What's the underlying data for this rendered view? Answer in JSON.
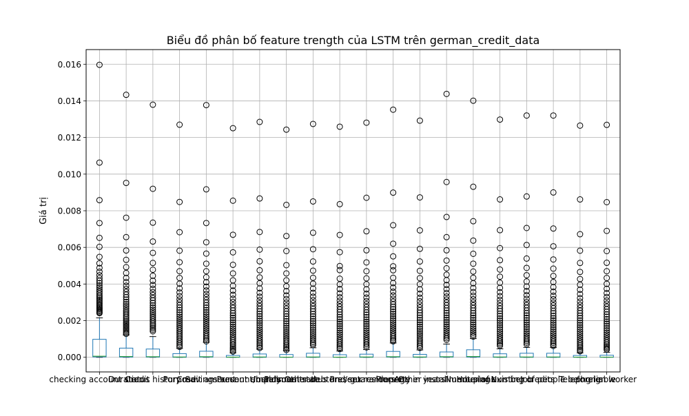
{
  "chart_data": {
    "type": "box",
    "title": "Biểu đồ phân bố feature trength của LSTM trên german_credit_data",
    "xlabel": "",
    "ylabel": "Giá trị",
    "ylim": [
      -0.0008,
      0.0168
    ],
    "yticks": [
      0.0,
      0.002,
      0.004,
      0.006,
      0.008,
      0.01,
      0.012,
      0.014,
      0.016
    ],
    "ytick_labels": [
      "0.000",
      "0.002",
      "0.004",
      "0.006",
      "0.008",
      "0.010",
      "0.012",
      "0.014",
      "0.016"
    ],
    "grid": true,
    "colors": {
      "box": "#1f77b4",
      "median": "#2ca02c",
      "whisker": "#000000",
      "grid": "#b0b0b0"
    },
    "categories": [
      "checking account status",
      "Duration",
      "Credit history",
      "Purpose",
      "Credit amount",
      "Savings account/bonds",
      "Present employment",
      "Installment rate",
      "Personal status and sex",
      "Other debtors / guarantors",
      "Present residence",
      "Property",
      "Age in years",
      "Other installment plans",
      "Housing",
      "Number of existing credits",
      "Job",
      "Number of people being liable",
      "Telephone",
      "foreign worker"
    ],
    "boxes": [
      {
        "q1": 2e-05,
        "median": 6e-05,
        "q3": 0.00098,
        "whislo": 0.0,
        "whishi": 0.00215,
        "fliers": [
          0.01597,
          0.01063,
          0.00858,
          0.00733,
          0.00652,
          0.00603,
          0.00548,
          0.00513,
          0.00488,
          0.00467,
          0.00448,
          0.00432,
          0.00418,
          0.00405,
          0.00392,
          0.00381,
          0.0037,
          0.0036,
          0.0035,
          0.0034,
          0.00331,
          0.00322,
          0.00314,
          0.00306,
          0.00298,
          0.0029,
          0.00283,
          0.00276,
          0.0027,
          0.00264,
          0.00258,
          0.00252,
          0.00246,
          0.00241
        ]
      },
      {
        "q1": 1e-05,
        "median": 4e-05,
        "q3": 0.0005,
        "whislo": 0.0,
        "whishi": 0.00122,
        "fliers": [
          0.01433,
          0.00952,
          0.00762,
          0.00656,
          0.00583,
          0.00532,
          0.00492,
          0.0046,
          0.00433,
          0.00411,
          0.00391,
          0.00373,
          0.00357,
          0.00342,
          0.00328,
          0.00315,
          0.00302,
          0.0029,
          0.00279,
          0.00268,
          0.00257,
          0.00247,
          0.00237,
          0.00227,
          0.00218,
          0.00209,
          0.002,
          0.00191,
          0.00183,
          0.00175,
          0.00167,
          0.00159,
          0.00151,
          0.00143,
          0.00135,
          0.00128
        ]
      },
      {
        "q1": 1e-05,
        "median": 3e-05,
        "q3": 0.00045,
        "whislo": 0.0,
        "whishi": 0.00113,
        "fliers": [
          0.01379,
          0.0092,
          0.00735,
          0.00632,
          0.0057,
          0.00515,
          0.00478,
          0.00445,
          0.00418,
          0.00395,
          0.00374,
          0.00356,
          0.0034,
          0.00324,
          0.0031,
          0.00296,
          0.00283,
          0.00271,
          0.00259,
          0.00248,
          0.00237,
          0.00226,
          0.00216,
          0.00206,
          0.00196,
          0.00186,
          0.00177,
          0.00168,
          0.00159,
          0.0015,
          0.00142
        ]
      },
      {
        "q1": 0.0,
        "median": 2e-05,
        "q3": 0.0002,
        "whislo": 0.0,
        "whishi": 0.00048,
        "fliers": [
          0.0127,
          0.00848,
          0.00683,
          0.00582,
          0.00519,
          0.0047,
          0.00433,
          0.00402,
          0.00376,
          0.00354,
          0.00334,
          0.00316,
          0.003,
          0.00285,
          0.00271,
          0.00258,
          0.00245,
          0.00233,
          0.00221,
          0.0021,
          0.00199,
          0.00188,
          0.00177,
          0.00166,
          0.00156,
          0.00146,
          0.00136,
          0.00126,
          0.00116,
          0.00106,
          0.00096,
          0.00086,
          0.00076,
          0.00066,
          0.00057
        ]
      },
      {
        "q1": 1e-05,
        "median": 3e-05,
        "q3": 0.00033,
        "whislo": 0.0,
        "whishi": 0.00082,
        "fliers": [
          0.01377,
          0.00917,
          0.00733,
          0.00628,
          0.00566,
          0.00511,
          0.0047,
          0.00437,
          0.0041,
          0.00386,
          0.00365,
          0.00346,
          0.00329,
          0.00313,
          0.00298,
          0.00284,
          0.00271,
          0.00258,
          0.00246,
          0.00234,
          0.00222,
          0.00211,
          0.002,
          0.00189,
          0.00178,
          0.00167,
          0.00156,
          0.00145,
          0.00134,
          0.00124,
          0.00114,
          0.00104,
          0.00095,
          0.00087
        ]
      },
      {
        "q1": 0.0,
        "median": 1e-05,
        "q3": 0.0001,
        "whislo": 0.0,
        "whishi": 0.00024,
        "fliers": [
          0.01251,
          0.00855,
          0.00669,
          0.00573,
          0.00505,
          0.00458,
          0.0042,
          0.0039,
          0.00364,
          0.00341,
          0.0032,
          0.00302,
          0.00285,
          0.0027,
          0.00255,
          0.00241,
          0.00228,
          0.00215,
          0.00203,
          0.00191,
          0.00179,
          0.00167,
          0.00156,
          0.00145,
          0.00134,
          0.00123,
          0.00112,
          0.00102,
          0.00092,
          0.00082,
          0.00072,
          0.00063,
          0.00054,
          0.00046,
          0.00038,
          0.00031
        ]
      },
      {
        "q1": 0.0,
        "median": 2e-05,
        "q3": 0.00018,
        "whislo": 0.0,
        "whishi": 0.00044,
        "fliers": [
          0.01285,
          0.00867,
          0.00684,
          0.00588,
          0.00524,
          0.00475,
          0.00436,
          0.00404,
          0.00376,
          0.00352,
          0.00331,
          0.00312,
          0.00295,
          0.00279,
          0.00264,
          0.0025,
          0.00237,
          0.00224,
          0.00211,
          0.00199,
          0.00187,
          0.00175,
          0.00163,
          0.00151,
          0.0014,
          0.00129,
          0.00118,
          0.00107,
          0.00097,
          0.00087,
          0.00077,
          0.00068,
          0.00059,
          0.00051
        ]
      },
      {
        "q1": 0.0,
        "median": 1e-05,
        "q3": 0.00015,
        "whislo": 0.0,
        "whishi": 0.00036,
        "fliers": [
          0.01243,
          0.00832,
          0.00662,
          0.0058,
          0.00503,
          0.00458,
          0.0042,
          0.00388,
          0.00361,
          0.00338,
          0.00318,
          0.00299,
          0.00282,
          0.00266,
          0.00251,
          0.00237,
          0.00223,
          0.0021,
          0.00197,
          0.00184,
          0.00172,
          0.0016,
          0.00148,
          0.00137,
          0.00126,
          0.00115,
          0.00104,
          0.00094,
          0.00084,
          0.00074,
          0.00065,
          0.00056,
          0.00048,
          0.0004
        ]
      },
      {
        "q1": 0.0,
        "median": 2e-05,
        "q3": 0.00022,
        "whislo": 0.0,
        "whishi": 0.00052,
        "fliers": [
          0.01274,
          0.00851,
          0.0068,
          0.0059,
          0.00523,
          0.00473,
          0.00434,
          0.00402,
          0.00375,
          0.00352,
          0.00331,
          0.00312,
          0.00295,
          0.00279,
          0.00264,
          0.0025,
          0.00236,
          0.00223,
          0.0021,
          0.00197,
          0.00185,
          0.00173,
          0.00161,
          0.00149,
          0.00137,
          0.00126,
          0.00115,
          0.00104,
          0.00094,
          0.00084,
          0.00075,
          0.00067
        ]
      },
      {
        "q1": 0.0,
        "median": 1e-05,
        "q3": 0.00014,
        "whislo": 0.0,
        "whishi": 0.00034,
        "fliers": [
          0.01259,
          0.00836,
          0.00668,
          0.00574,
          0.00498,
          0.00476,
          0.00429,
          0.00398,
          0.00372,
          0.00349,
          0.00328,
          0.00309,
          0.00292,
          0.00276,
          0.00261,
          0.00247,
          0.00233,
          0.0022,
          0.00207,
          0.00194,
          0.00182,
          0.0017,
          0.00158,
          0.00146,
          0.00134,
          0.00123,
          0.00112,
          0.00101,
          0.00091,
          0.00081,
          0.00071,
          0.00062,
          0.00053,
          0.00045
        ]
      },
      {
        "q1": 0.0,
        "median": 2e-05,
        "q3": 0.00017,
        "whislo": 0.0,
        "whishi": 0.00042,
        "fliers": [
          0.01281,
          0.00871,
          0.00688,
          0.00584,
          0.00518,
          0.0047,
          0.00431,
          0.00399,
          0.00371,
          0.00347,
          0.00326,
          0.00307,
          0.0029,
          0.00274,
          0.00259,
          0.00245,
          0.00232,
          0.00219,
          0.00206,
          0.00194,
          0.00182,
          0.0017,
          0.00158,
          0.00146,
          0.00135,
          0.00124,
          0.00113,
          0.00102,
          0.00092,
          0.00082,
          0.00072,
          0.00063,
          0.00054
        ]
      },
      {
        "q1": 1e-05,
        "median": 3e-05,
        "q3": 0.00032,
        "whislo": 0.0,
        "whishi": 0.00078,
        "fliers": [
          0.01352,
          0.00899,
          0.00721,
          0.0062,
          0.00551,
          0.00497,
          0.00475,
          0.00434,
          0.00405,
          0.0038,
          0.00358,
          0.00338,
          0.0032,
          0.00304,
          0.00289,
          0.00275,
          0.00262,
          0.00249,
          0.00237,
          0.00225,
          0.00213,
          0.00201,
          0.00189,
          0.00178,
          0.00167,
          0.00156,
          0.00145,
          0.00134,
          0.00124,
          0.00114,
          0.00104,
          0.00095,
          0.00087
        ]
      },
      {
        "q1": 0.0,
        "median": 2e-05,
        "q3": 0.00016,
        "whislo": 0.0,
        "whishi": 0.0004,
        "fliers": [
          0.01292,
          0.00873,
          0.00693,
          0.00592,
          0.00523,
          0.00472,
          0.00432,
          0.00399,
          0.00371,
          0.00347,
          0.00325,
          0.00306,
          0.00288,
          0.00272,
          0.00257,
          0.00243,
          0.00229,
          0.00216,
          0.00203,
          0.00191,
          0.00179,
          0.00167,
          0.00155,
          0.00143,
          0.00132,
          0.00121,
          0.0011,
          0.00099,
          0.00089,
          0.00079,
          0.00069,
          0.0006,
          0.00051
        ]
      },
      {
        "q1": 1e-05,
        "median": 3e-05,
        "q3": 0.00029,
        "whislo": 0.0,
        "whishi": 0.00072,
        "fliers": [
          0.01438,
          0.00957,
          0.00766,
          0.00656,
          0.00584,
          0.00528,
          0.00486,
          0.00451,
          0.00421,
          0.00395,
          0.00372,
          0.00351,
          0.00332,
          0.00315,
          0.00299,
          0.00284,
          0.00269,
          0.00255,
          0.00242,
          0.00229,
          0.00216,
          0.00204,
          0.00192,
          0.0018,
          0.00168,
          0.00157,
          0.00146,
          0.00135,
          0.00124,
          0.00114,
          0.00104,
          0.00095
        ]
      },
      {
        "q1": 1e-05,
        "median": 4e-05,
        "q3": 0.00041,
        "whislo": 0.0,
        "whishi": 0.00102,
        "fliers": [
          0.01401,
          0.00931,
          0.00743,
          0.00637,
          0.00565,
          0.00511,
          0.00468,
          0.00434,
          0.00404,
          0.00378,
          0.00356,
          0.00336,
          0.00317,
          0.003,
          0.00284,
          0.00269,
          0.00255,
          0.00241,
          0.00228,
          0.00215,
          0.00203,
          0.00191,
          0.00179,
          0.00167,
          0.00156,
          0.00145,
          0.00134,
          0.00123,
          0.00113
        ]
      },
      {
        "q1": 0.0,
        "median": 2e-05,
        "q3": 0.00019,
        "whislo": 0.0,
        "whishi": 0.00046,
        "fliers": [
          0.01298,
          0.00862,
          0.00694,
          0.00596,
          0.0053,
          0.00479,
          0.0044,
          0.00407,
          0.00379,
          0.00355,
          0.00334,
          0.00314,
          0.00297,
          0.00281,
          0.00266,
          0.00252,
          0.00238,
          0.00225,
          0.00212,
          0.002,
          0.00188,
          0.00176,
          0.00164,
          0.00152,
          0.0014,
          0.00129,
          0.00118,
          0.00107,
          0.00097,
          0.00087,
          0.00078,
          0.0007,
          0.00063
        ]
      },
      {
        "q1": 0.0,
        "median": 2e-05,
        "q3": 0.00022,
        "whislo": 0.0,
        "whishi": 0.00054,
        "fliers": [
          0.0132,
          0.00878,
          0.00706,
          0.00613,
          0.00539,
          0.00488,
          0.00448,
          0.00414,
          0.00386,
          0.00361,
          0.00339,
          0.00319,
          0.00301,
          0.00285,
          0.0027,
          0.00255,
          0.00241,
          0.00228,
          0.00215,
          0.00202,
          0.0019,
          0.00178,
          0.00166,
          0.00154,
          0.00142,
          0.00131,
          0.0012,
          0.00109,
          0.00099,
          0.00089,
          0.0008,
          0.00071
        ]
      },
      {
        "q1": 0.0,
        "median": 2e-05,
        "q3": 0.00022,
        "whislo": 0.0,
        "whishi": 0.00053,
        "fliers": [
          0.0132,
          0.009,
          0.00703,
          0.00606,
          0.00534,
          0.00484,
          0.00444,
          0.00411,
          0.00383,
          0.00358,
          0.00336,
          0.00317,
          0.00299,
          0.00283,
          0.00268,
          0.00253,
          0.0024,
          0.00226,
          0.00213,
          0.00201,
          0.00189,
          0.00177,
          0.00165,
          0.00153,
          0.00141,
          0.0013,
          0.00119,
          0.00108,
          0.00098,
          0.00088,
          0.00079,
          0.0007,
          0.00062
        ]
      },
      {
        "q1": 0.0,
        "median": 1e-05,
        "q3": 0.0001,
        "whislo": 0.0,
        "whishi": 0.00024,
        "fliers": [
          0.01265,
          0.00862,
          0.00672,
          0.00582,
          0.00515,
          0.00466,
          0.00427,
          0.00396,
          0.00369,
          0.00345,
          0.00323,
          0.00304,
          0.00286,
          0.0027,
          0.00255,
          0.00241,
          0.00227,
          0.00214,
          0.00201,
          0.00188,
          0.00176,
          0.00164,
          0.00152,
          0.0014,
          0.00129,
          0.00118,
          0.00107,
          0.00096,
          0.00086,
          0.00076,
          0.00066,
          0.00057,
          0.00048,
          0.0004,
          0.00033
        ]
      },
      {
        "q1": 0.0,
        "median": 1e-05,
        "q3": 0.00011,
        "whislo": 0.0,
        "whishi": 0.00027,
        "fliers": [
          0.01269,
          0.00847,
          0.0069,
          0.0058,
          0.00516,
          0.0047,
          0.00433,
          0.00401,
          0.00374,
          0.0035,
          0.00329,
          0.0031,
          0.00293,
          0.00277,
          0.00262,
          0.00248,
          0.00234,
          0.00221,
          0.00208,
          0.00195,
          0.00183,
          0.00171,
          0.00159,
          0.00147,
          0.00135,
          0.00124,
          0.00113,
          0.00102,
          0.00092,
          0.00082,
          0.00073,
          0.00064,
          0.00056,
          0.00049,
          0.00042
        ]
      }
    ]
  }
}
